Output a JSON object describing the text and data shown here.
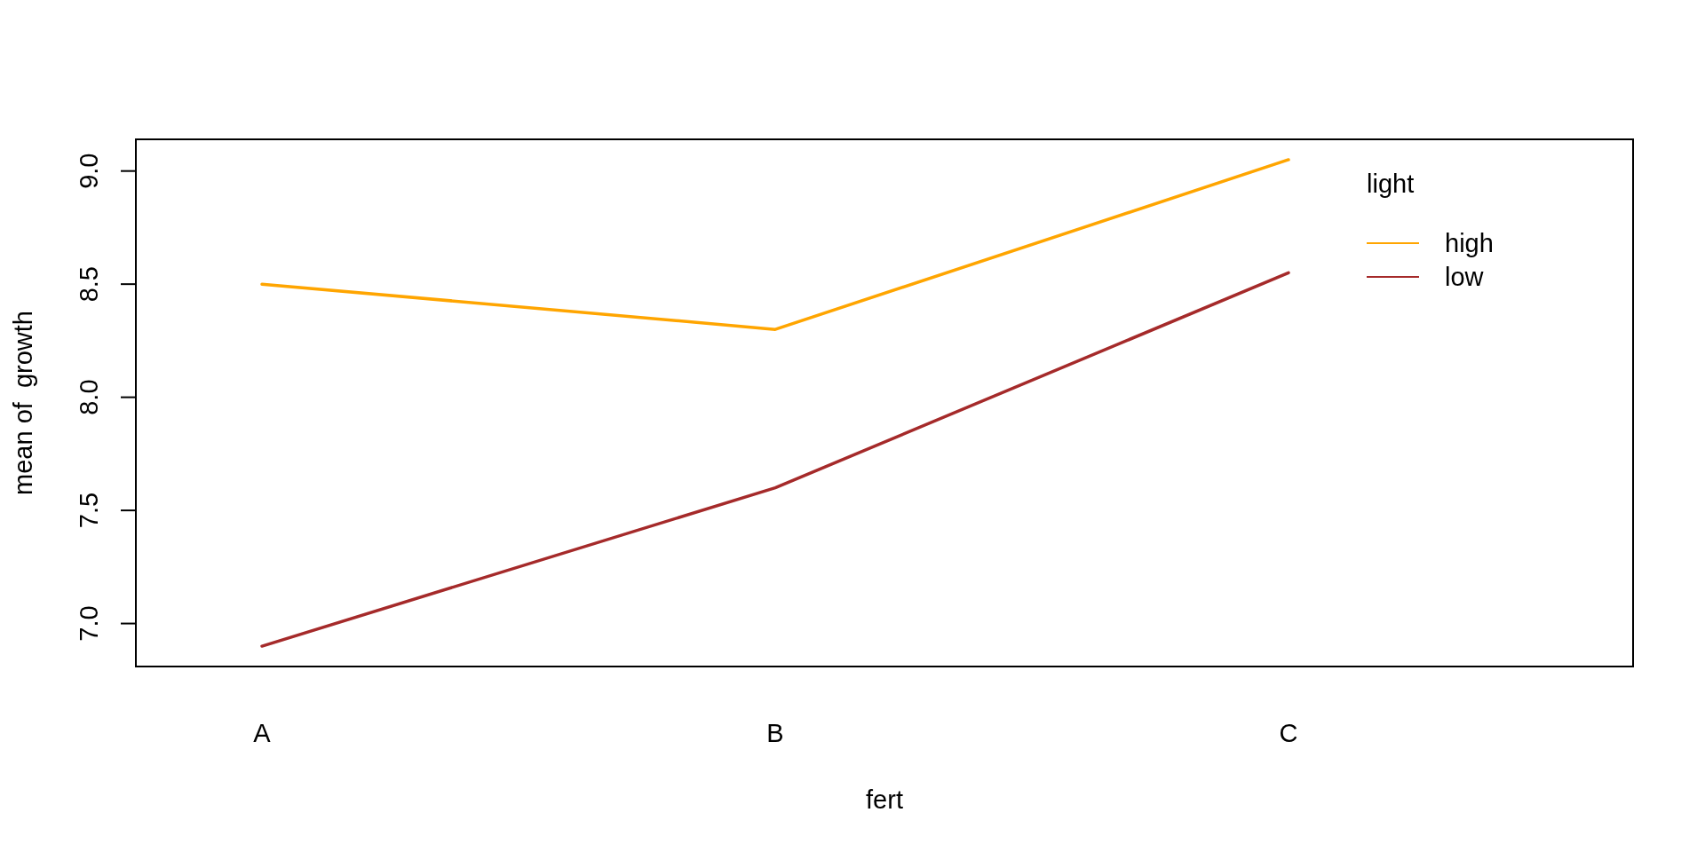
{
  "chart_data": {
    "type": "line",
    "xlabel": "fert",
    "ylabel": "mean of  growth",
    "legend_title": "light",
    "categories": [
      "A",
      "B",
      "C"
    ],
    "series": [
      {
        "name": "high",
        "color": "#ffa500",
        "values": [
          8.5,
          8.3,
          9.05
        ]
      },
      {
        "name": "low",
        "color": "#a52a2a",
        "values": [
          6.9,
          7.6,
          8.55
        ]
      }
    ],
    "ylim": [
      6.81,
      9.14
    ],
    "yticks": [
      {
        "value": 7,
        "label": "7.0"
      },
      {
        "value": 7.5,
        "label": "7.5"
      },
      {
        "value": 8,
        "label": "8.0"
      },
      {
        "value": 8.5,
        "label": "8.5"
      },
      {
        "value": 9,
        "label": "9.0"
      }
    ],
    "legend": "top right",
    "line_style": "solid"
  }
}
